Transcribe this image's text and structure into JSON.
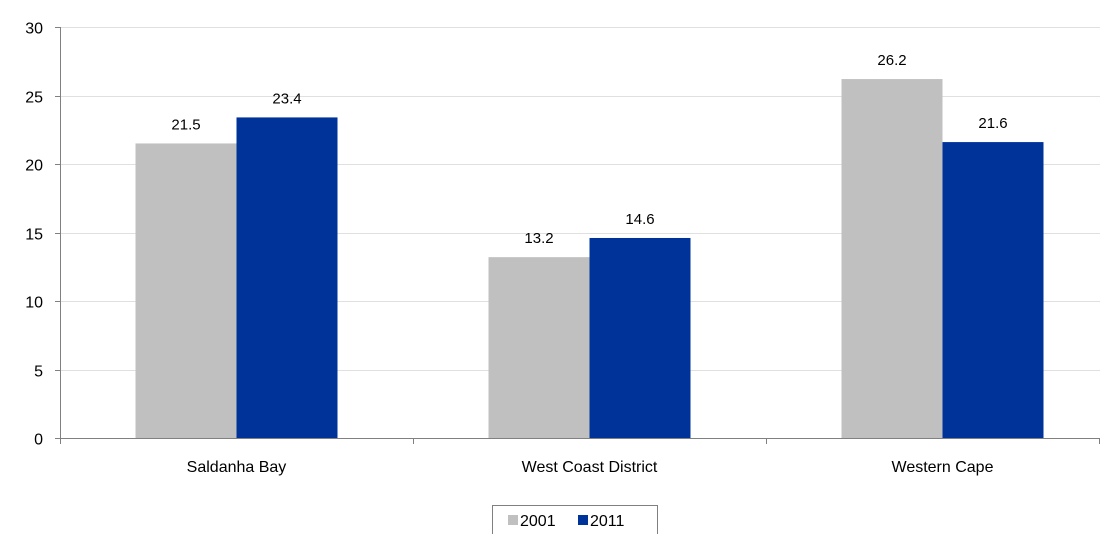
{
  "chart_data": {
    "type": "bar",
    "categories": [
      "Saldanha Bay",
      "West Coast District",
      "Western Cape"
    ],
    "series": [
      {
        "name": "2001",
        "values": [
          21.5,
          13.2,
          26.2
        ],
        "labels": [
          "21.5",
          "13.2",
          "26.2"
        ]
      },
      {
        "name": "2011",
        "values": [
          23.4,
          14.6,
          21.6
        ],
        "labels": [
          "23.4",
          "14.6",
          "21.6"
        ]
      }
    ],
    "title": "",
    "xlabel": "",
    "ylabel": "",
    "ylim": [
      0,
      30
    ],
    "yticks": [
      0,
      5,
      10,
      15,
      20,
      25,
      30
    ],
    "ytick_labels": [
      "0",
      "5",
      "10",
      "15",
      "20",
      "25",
      "30"
    ],
    "grid": true,
    "legend_position": "bottom",
    "colors": {
      "2001": "#C0C0C0",
      "2011": "#003399",
      "grid": "#E0E0E0",
      "axis": "#808080"
    }
  }
}
